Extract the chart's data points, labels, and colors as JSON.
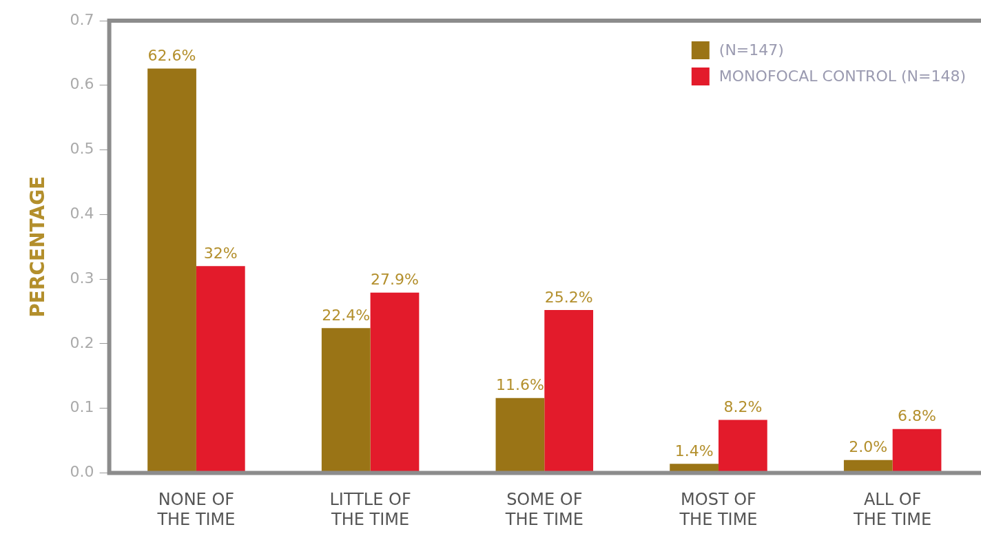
{
  "chart_data": {
    "type": "bar",
    "ylabel": "PERCENTAGE",
    "categories": [
      "NONE OF\nTHE TIME",
      "LITTLE OF\nTHE TIME",
      "SOME OF\nTHE TIME",
      "MOST OF\nTHE TIME",
      "ALL OF\nTHE TIME"
    ],
    "series": [
      {
        "name": "(N=147)",
        "color": "#9a7416",
        "values": [
          0.626,
          0.224,
          0.116,
          0.014,
          0.02
        ],
        "value_labels": [
          "62.6%",
          "22.4%",
          "11.6%",
          "1.4%",
          "2.0%"
        ]
      },
      {
        "name": "MONOFOCAL CONTROL (N=148)",
        "color": "#e31b2b",
        "values": [
          0.32,
          0.279,
          0.252,
          0.082,
          0.068
        ],
        "value_labels": [
          "32%",
          "27.9%",
          "25.2%",
          "8.2%",
          "6.8%"
        ]
      }
    ],
    "ylim": [
      0,
      0.7
    ],
    "yticks": [
      {
        "value": 0,
        "label": "0.0"
      },
      0.1,
      0.2,
      0.3,
      0.4,
      0.5,
      0.6,
      0.7
    ],
    "grid": false,
    "legend": "top right"
  }
}
